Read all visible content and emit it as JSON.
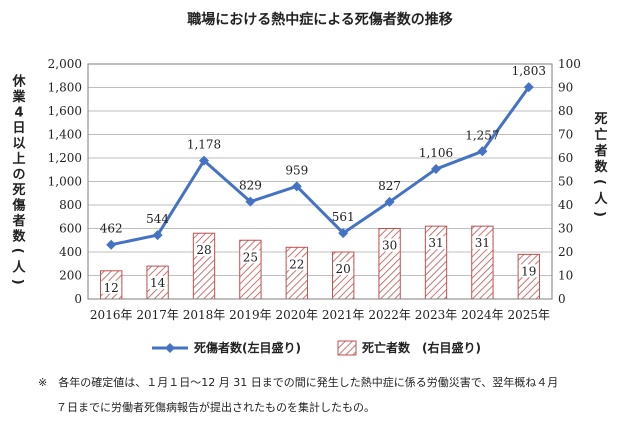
{
  "chart_data": {
    "type": "bar+line",
    "title": "職場における熱中症による死傷者数の推移",
    "categories": [
      "2016年",
      "2017年",
      "2018年",
      "2019年",
      "2020年",
      "2021年",
      "2022年",
      "2023年",
      "2024年",
      "2025年"
    ],
    "series": [
      {
        "name": "死傷者数(左目盛り)",
        "type": "line",
        "axis": "left",
        "color": "#4472c4",
        "values": [
          462,
          544,
          1178,
          829,
          959,
          561,
          827,
          1106,
          1257,
          1803
        ],
        "labels": [
          "462",
          "544",
          "1,178",
          "829",
          "959",
          "561",
          "827",
          "1,106",
          "1,257",
          "1,803"
        ]
      },
      {
        "name": "死亡者数　(右目盛り)",
        "type": "bar",
        "axis": "right",
        "color": "#c0504d",
        "values": [
          12,
          14,
          28,
          25,
          22,
          20,
          30,
          31,
          31,
          19
        ]
      }
    ],
    "y_left": {
      "label": "休業4日以上の死傷者数(人)",
      "lim": [
        0,
        2000
      ],
      "step": 200,
      "ticks": [
        "0",
        "200",
        "400",
        "600",
        "800",
        "1,000",
        "1,200",
        "1,400",
        "1,600",
        "1,800",
        "2,000"
      ]
    },
    "y_right": {
      "label": "死亡者数(人)",
      "lim": [
        0,
        100
      ],
      "step": 10,
      "ticks": [
        "0",
        "10",
        "20",
        "30",
        "40",
        "50",
        "60",
        "70",
        "80",
        "90",
        "100"
      ]
    },
    "grid": true,
    "legend": "bottom"
  },
  "footnote": {
    "mark": "※",
    "line1": "各年の確定値は、１月１日～12 月 31 日までの間に発生した熱中症に係る労働災害で、翌年概ね４月",
    "line2": "７日までに労働者死傷病報告が提出されたものを集計したもの。"
  }
}
